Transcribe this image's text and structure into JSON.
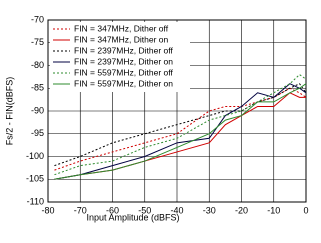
{
  "chart_data": {
    "type": "line",
    "xlabel": "Input Amplitude (dBFS)",
    "ylabel": "Fs/2 - FIN(dBFS)",
    "x": [
      -78,
      -70,
      -60,
      -50,
      -40,
      -30,
      -25,
      -20,
      -15,
      -10,
      -5,
      -2,
      0
    ],
    "series": [
      {
        "name": "FIN = 347MHz, Dither off",
        "color": "#d00000",
        "line_style": "dotted",
        "values": [
          -103,
          -101,
          -99,
          -97,
          -95,
          -90,
          -89,
          -89,
          -88,
          -87,
          -85,
          -86,
          -87
        ]
      },
      {
        "name": "FIN = 347MHz, Dither on",
        "color": "#d00000",
        "line_style": "solid",
        "values": [
          -105,
          -104,
          -103,
          -101,
          -99,
          -97,
          -93,
          -91,
          -89,
          -89,
          -86,
          -87,
          -87
        ]
      },
      {
        "name": "FIN = 2397MHz, Dither off",
        "color": "#000000",
        "line_style": "dotted",
        "values": [
          -102,
          -100,
          -97,
          -95,
          -93,
          -91,
          -90,
          -90,
          -88,
          -87,
          -85,
          -84,
          -86
        ]
      },
      {
        "name": "FIN = 2397MHz, Dither on",
        "color": "#000040",
        "line_style": "solid",
        "values": [
          -105,
          -104,
          -102,
          -100,
          -97,
          -96,
          -91,
          -89,
          -86,
          -87,
          -84,
          -85,
          -86
        ]
      },
      {
        "name": "FIN = 5597MHz, Dither off",
        "color": "#2e8b2e",
        "line_style": "dotted",
        "values": [
          -104,
          -102,
          -101,
          -98,
          -96,
          -92,
          -91,
          -90,
          -88,
          -86,
          -84,
          -82,
          -83
        ]
      },
      {
        "name": "FIN = 5597MHz, Dither on",
        "color": "#2e8b2e",
        "line_style": "solid",
        "values": [
          -105,
          -104,
          -103,
          -101,
          -98,
          -95,
          -92,
          -91,
          -88,
          -88,
          -86,
          -85,
          -84
        ]
      }
    ],
    "xlim": [
      -80,
      0
    ],
    "xticks": [
      -80,
      -70,
      -60,
      -50,
      -40,
      -30,
      -20,
      -10,
      0
    ],
    "ylim": [
      -110,
      -70
    ],
    "yticks": [
      -110,
      -105,
      -100,
      -95,
      -90,
      -85,
      -80,
      -75,
      -70
    ],
    "grid": true,
    "legend": "upper left"
  }
}
